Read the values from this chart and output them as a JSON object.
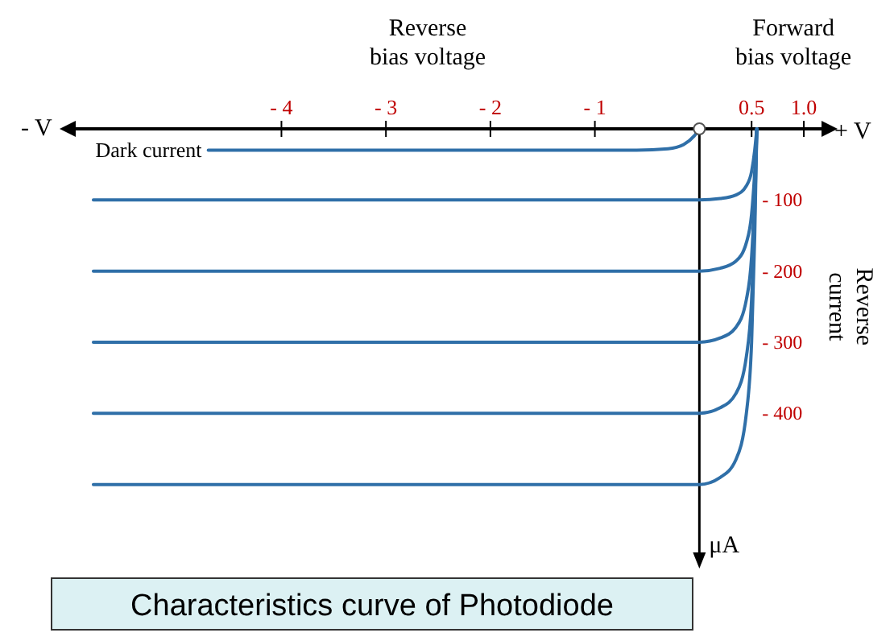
{
  "chart_data": {
    "type": "line",
    "title": "Characteristics curve of Photodiode",
    "ylabel": "Reverse current",
    "annotations": [
      "Reverse bias voltage",
      "Forward bias voltage",
      "- V",
      "+ V",
      "μA"
    ],
    "xlim": [
      -6,
      1.2
    ],
    "xticks": [
      {
        "value": -4,
        "label": "- 4"
      },
      {
        "value": -3,
        "label": "- 3"
      },
      {
        "value": -2,
        "label": "- 2"
      },
      {
        "value": -1,
        "label": "- 1"
      },
      0.5,
      {
        "value": 1,
        "label": "1.0"
      }
    ],
    "ylim": [
      -600,
      0
    ],
    "yticks": [
      {
        "value": -100,
        "label": "- 100"
      },
      {
        "value": -200,
        "label": "- 200"
      },
      {
        "value": -300,
        "label": "- 300"
      },
      {
        "value": -400,
        "label": "- 400"
      }
    ],
    "grid": false,
    "marker": "none",
    "line_style": "solid",
    "series": [
      {
        "name": "Dark current",
        "color": "#2f6fa8",
        "x": [
          -4.7,
          -2,
          -0.6,
          -0.3,
          -0.15,
          -0.05,
          0
        ],
        "values": [
          -30,
          -30,
          -30,
          -28,
          -22,
          -10,
          0
        ]
      },
      {
        "color": "#2f6fa8",
        "x": [
          -5.8,
          -3,
          -1,
          0,
          0.2,
          0.35,
          0.45,
          0.5,
          0.53,
          0.55
        ],
        "values": [
          -100,
          -100,
          -100,
          -100,
          -98,
          -93,
          -80,
          -60,
          -30,
          0
        ]
      },
      {
        "color": "#2f6fa8",
        "x": [
          -5.8,
          -3,
          -1,
          0,
          0.2,
          0.35,
          0.45,
          0.5,
          0.53,
          0.55
        ],
        "values": [
          -200,
          -200,
          -200,
          -200,
          -196,
          -186,
          -160,
          -120,
          -60,
          0
        ]
      },
      {
        "color": "#2f6fa8",
        "x": [
          -5.8,
          -3,
          -1,
          0,
          0.2,
          0.35,
          0.45,
          0.5,
          0.53,
          0.55
        ],
        "values": [
          -300,
          -300,
          -300,
          -300,
          -294,
          -279,
          -240,
          -180,
          -90,
          0
        ]
      },
      {
        "color": "#2f6fa8",
        "x": [
          -5.8,
          -3,
          -1,
          0,
          0.2,
          0.35,
          0.45,
          0.5,
          0.53,
          0.55
        ],
        "values": [
          -400,
          -400,
          -400,
          -400,
          -392,
          -372,
          -320,
          -240,
          -120,
          0
        ]
      },
      {
        "color": "#2f6fa8",
        "x": [
          -5.8,
          -3,
          -1,
          0,
          0.2,
          0.35,
          0.45,
          0.5,
          0.53,
          0.55
        ],
        "values": [
          -500,
          -500,
          -500,
          -500,
          -490,
          -465,
          -400,
          -300,
          -150,
          0
        ]
      }
    ]
  }
}
